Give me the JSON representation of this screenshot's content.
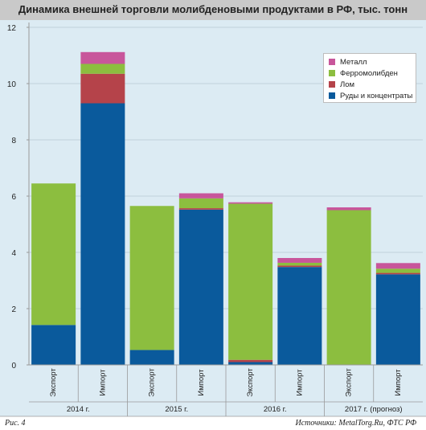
{
  "chart_data": {
    "type": "bar",
    "stacked": true,
    "title": "Динамика внешней торговли молибденовыми продуктами в РФ, тыс. тонн",
    "ylim": [
      0,
      12
    ],
    "yticks": [
      0,
      2,
      4,
      6,
      8,
      10,
      12
    ],
    "grid": true,
    "legend_position": "top-right",
    "categories": [
      "Экспорт",
      "Импорт",
      "Экспорт",
      "Импорт",
      "Экспорт",
      "Импорт",
      "Экспорт",
      "Импорт"
    ],
    "groups": [
      {
        "label": "2014 г.",
        "span": 2
      },
      {
        "label": "2015 г.",
        "span": 2
      },
      {
        "label": "2016 г.",
        "span": 2
      },
      {
        "label": "2017 г. (прогноз)",
        "span": 2
      }
    ],
    "series": [
      {
        "name": "Руды и концентраты",
        "color": "#0a5a9c",
        "values": [
          1.42,
          9.3,
          0.53,
          5.52,
          0.1,
          3.48,
          0.0,
          3.22
        ]
      },
      {
        "name": "Лом",
        "color": "#b5434a",
        "values": [
          0.0,
          1.05,
          0.0,
          0.05,
          0.08,
          0.05,
          0.0,
          0.05
        ]
      },
      {
        "name": "Ферромолибден",
        "color": "#8cbe3f",
        "values": [
          5.03,
          0.35,
          5.12,
          0.35,
          5.55,
          0.1,
          5.5,
          0.15
        ]
      },
      {
        "name": "Металл",
        "color": "#c8569b",
        "values": [
          0.0,
          0.42,
          0.0,
          0.18,
          0.05,
          0.17,
          0.1,
          0.2
        ]
      }
    ],
    "legend_order": [
      "Металл",
      "Ферромолибден",
      "Лом",
      "Руды и концентраты"
    ]
  },
  "footer": {
    "figure_label": "Рис. 4",
    "source": "Источники: MetalTorg.Ru, ФТС РФ"
  }
}
